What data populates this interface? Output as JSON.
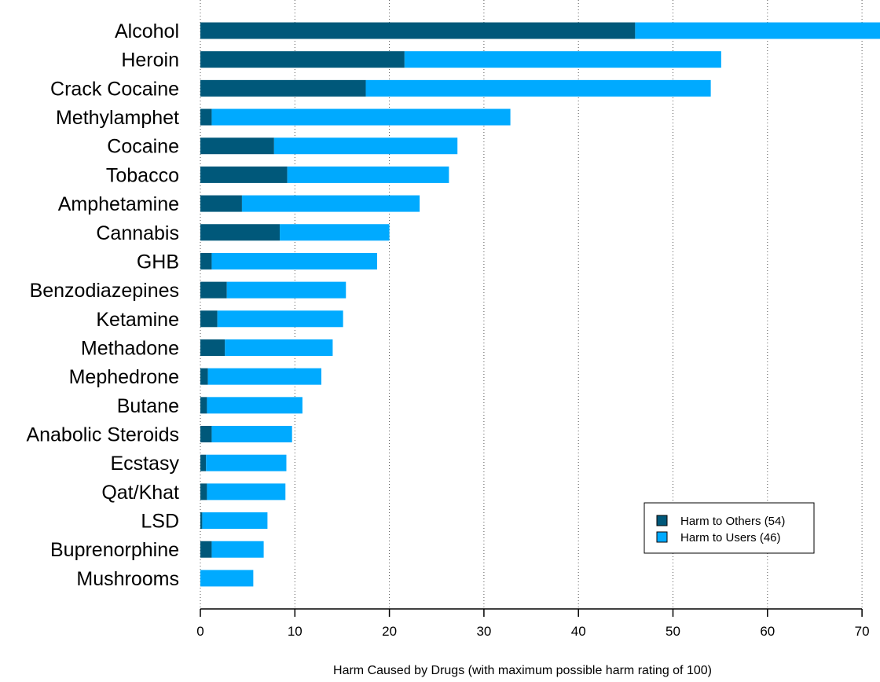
{
  "chart_data": {
    "type": "bar",
    "orientation": "horizontal",
    "stacked": true,
    "title": "",
    "xlabel": "Harm Caused by Drugs (with maximum possible harm rating of 100)",
    "ylabel": "",
    "xlim": [
      0,
      72
    ],
    "xticks": [
      0,
      10,
      20,
      30,
      40,
      50,
      60,
      70
    ],
    "grid": "vertical dotted",
    "legend_placement": "bottom-right",
    "categories": [
      "Alcohol",
      "Heroin",
      "Crack Cocaine",
      "Methylamphet",
      "Cocaine",
      "Tobacco",
      "Amphetamine",
      "Cannabis",
      "GHB",
      "Benzodiazepines",
      "Ketamine",
      "Methadone",
      "Mephedrone",
      "Butane",
      "Anabolic Steroids",
      "Ecstasy",
      "Qat/Khat",
      "LSD",
      "Buprenorphine",
      "Mushrooms"
    ],
    "series": [
      {
        "name": "Harm to Others (54)",
        "color": "#00587a",
        "values": [
          46.0,
          21.6,
          17.5,
          1.2,
          7.8,
          9.2,
          4.4,
          8.4,
          1.2,
          2.8,
          1.8,
          2.6,
          0.8,
          0.7,
          1.2,
          0.6,
          0.7,
          0.2,
          1.2,
          0.0
        ]
      },
      {
        "name": "Harm to Users (46)",
        "color": "#00aaff",
        "values": [
          26.0,
          33.5,
          36.5,
          31.6,
          19.4,
          17.1,
          18.8,
          11.6,
          17.5,
          12.6,
          13.3,
          11.4,
          12.0,
          10.1,
          8.5,
          8.5,
          8.3,
          6.9,
          5.5,
          5.6
        ]
      }
    ]
  }
}
